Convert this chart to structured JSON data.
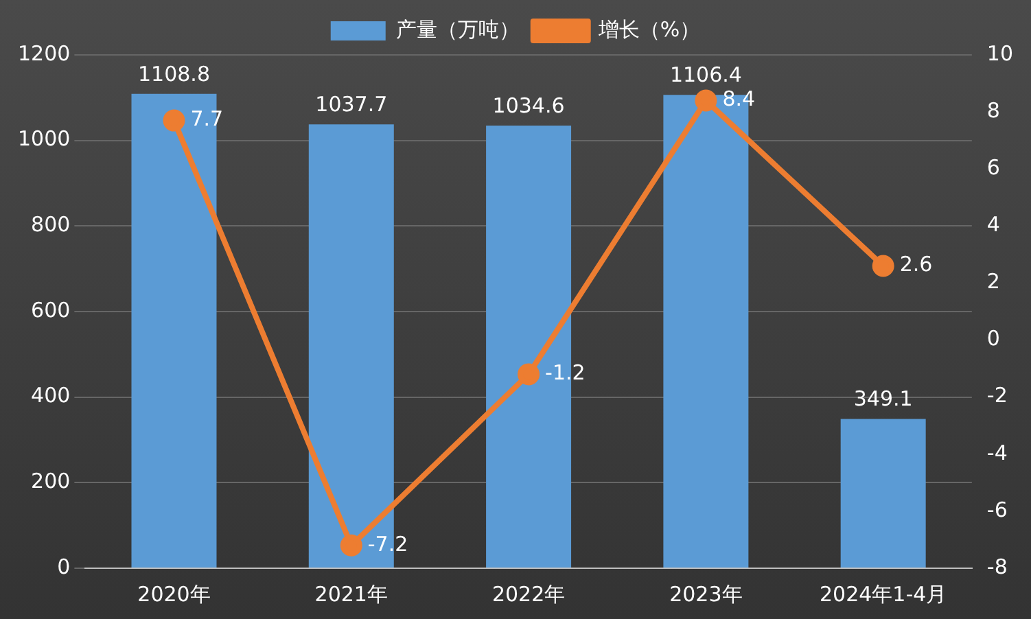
{
  "chart_data": {
    "type": "bar",
    "categories": [
      "2020年",
      "2021年",
      "2022年",
      "2023年",
      "2024年1-4月"
    ],
    "series": [
      {
        "name": "产量（万吨）",
        "color": "#5b9bd5",
        "values": [
          1108.8,
          1037.7,
          1034.6,
          1106.4,
          349.1
        ]
      },
      {
        "name": "增长（%）",
        "type": "line",
        "axis": "y2",
        "color": "#ed7d31",
        "values": [
          7.7,
          -7.2,
          -1.2,
          8.4,
          2.6
        ]
      }
    ],
    "ylim": [
      0,
      1200
    ],
    "yticks": [
      0,
      200,
      400,
      600,
      800,
      1000,
      1200
    ],
    "y2lim": [
      -8,
      10
    ],
    "y2ticks": [
      -8,
      -6,
      -4,
      -2,
      0,
      2,
      4,
      6,
      8,
      10
    ],
    "grid": "y",
    "legend": "top",
    "marker": "circle",
    "line_style": "solid",
    "data_labels": true
  }
}
